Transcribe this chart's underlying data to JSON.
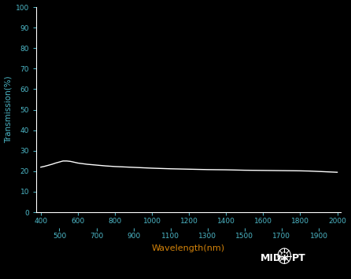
{
  "background_color": "#000000",
  "line_color": "#ffffff",
  "xlabel": "Wavelength(nm)",
  "xlabel_color": "#d4830a",
  "ylabel": "Transmission(%)",
  "tick_label_color": "#4db8c8",
  "xlim": [
    375,
    2020
  ],
  "ylim": [
    0,
    100
  ],
  "yticks": [
    0,
    10,
    20,
    30,
    40,
    50,
    60,
    70,
    80,
    90,
    100
  ],
  "xticks_major": [
    400,
    600,
    800,
    1000,
    1200,
    1400,
    1600,
    1800,
    2000
  ],
  "xticks_minor": [
    500,
    700,
    900,
    1100,
    1300,
    1500,
    1700,
    1900
  ],
  "wavelengths": [
    400,
    420,
    440,
    460,
    480,
    500,
    520,
    540,
    560,
    580,
    600,
    650,
    700,
    750,
    800,
    850,
    900,
    950,
    1000,
    1100,
    1200,
    1300,
    1400,
    1500,
    1600,
    1700,
    1800,
    1850,
    1900,
    1950,
    2000
  ],
  "transmission": [
    22.0,
    22.4,
    22.9,
    23.4,
    24.0,
    24.5,
    25.0,
    25.0,
    24.8,
    24.4,
    24.0,
    23.4,
    23.0,
    22.6,
    22.3,
    22.1,
    21.9,
    21.7,
    21.5,
    21.2,
    21.0,
    20.8,
    20.7,
    20.5,
    20.4,
    20.3,
    20.2,
    20.1,
    19.9,
    19.7,
    19.5
  ],
  "spine_color": "#ffffff",
  "midopt_color": "#ffffff"
}
